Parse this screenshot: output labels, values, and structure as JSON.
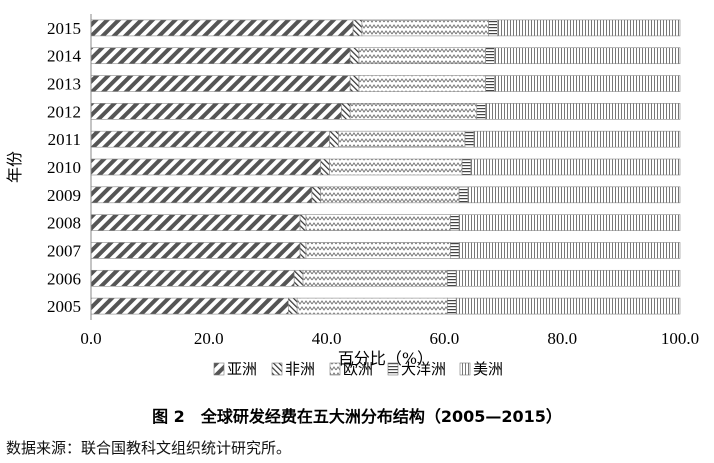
{
  "chart_data": {
    "type": "bar",
    "orientation": "horizontal",
    "stacked": true,
    "categories": [
      "2015",
      "2014",
      "2013",
      "2012",
      "2011",
      "2010",
      "2009",
      "2008",
      "2007",
      "2006",
      "2005"
    ],
    "series": [
      {
        "name": "亚洲",
        "pattern": "diagonal-bold",
        "values": [
          44.5,
          44.0,
          44.0,
          42.5,
          40.5,
          39.0,
          37.5,
          35.5,
          35.5,
          34.5,
          33.5
        ]
      },
      {
        "name": "非洲",
        "pattern": "diagonal-fine",
        "values": [
          1.5,
          1.5,
          1.5,
          1.5,
          1.5,
          1.5,
          1.5,
          1.0,
          1.0,
          1.5,
          1.5
        ]
      },
      {
        "name": "欧洲",
        "pattern": "zigzag",
        "values": [
          21.5,
          21.5,
          21.5,
          21.5,
          21.5,
          22.5,
          23.5,
          24.5,
          24.5,
          24.5,
          25.5
        ]
      },
      {
        "name": "大洋洲",
        "pattern": "horizontal",
        "values": [
          1.5,
          1.5,
          1.5,
          1.5,
          1.5,
          1.5,
          1.5,
          1.5,
          1.5,
          1.5,
          1.5
        ]
      },
      {
        "name": "美洲",
        "pattern": "vertical",
        "values": [
          31.0,
          31.5,
          31.5,
          33.0,
          35.0,
          35.5,
          36.0,
          37.5,
          37.5,
          38.0,
          38.0
        ]
      }
    ],
    "title": "",
    "xlabel": "百分比（%）",
    "ylabel": "年份",
    "xlim": [
      0,
      100
    ],
    "xticks": [
      "0.0",
      "20.0",
      "40.0",
      "60.0",
      "80.0",
      "100.0"
    ],
    "grid": false,
    "legend_position": "bottom"
  },
  "caption": "图 2　全球研发经费在五大洲分布结构（2005—2015）",
  "source_note": "数据来源：联合国教科文组织统计研究所。"
}
